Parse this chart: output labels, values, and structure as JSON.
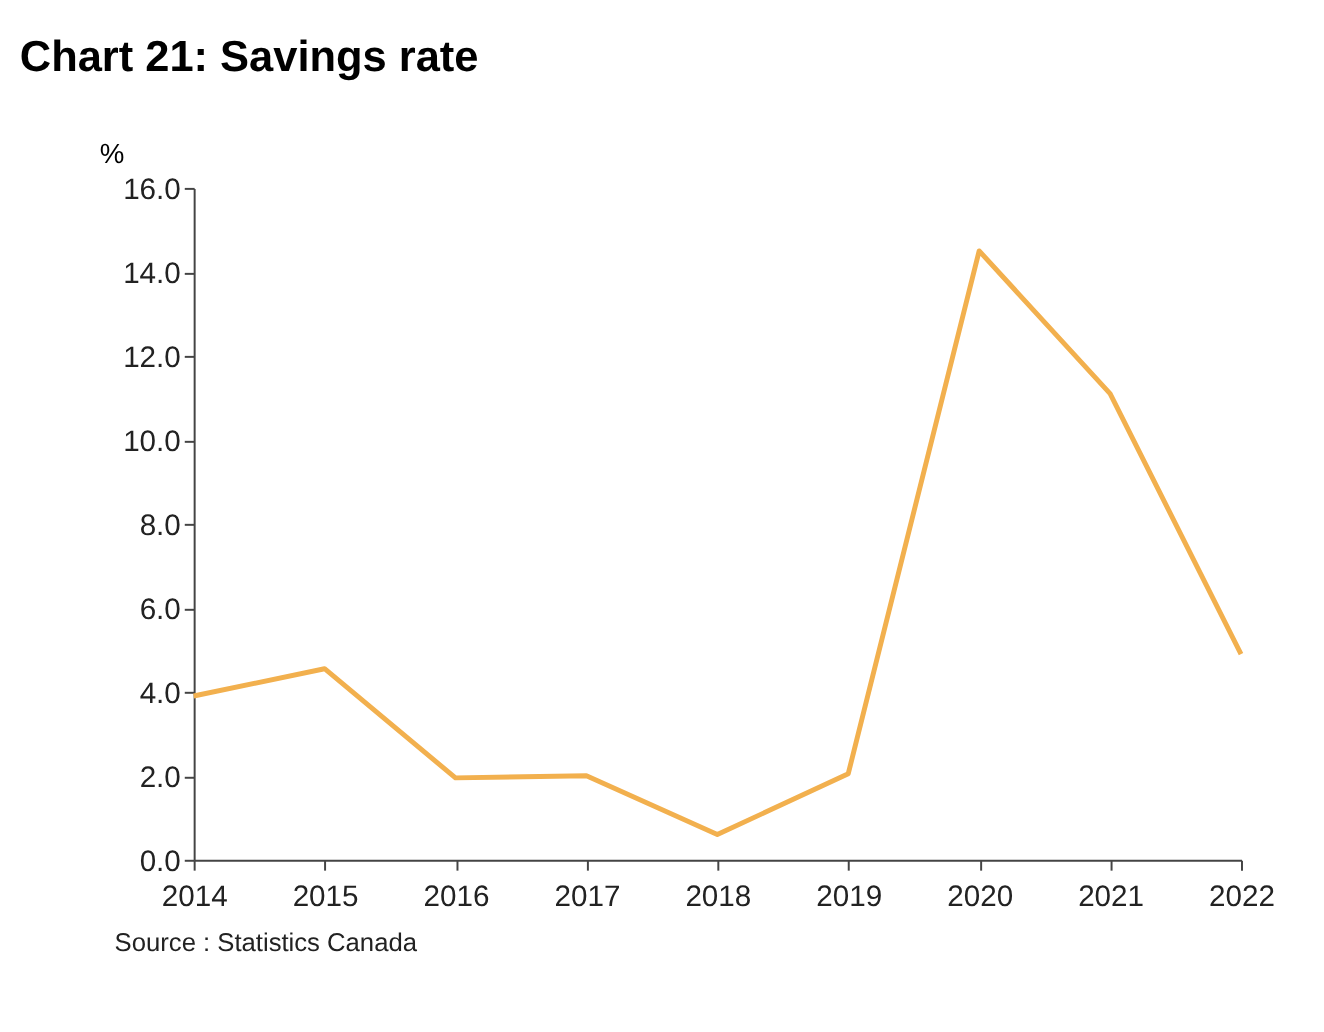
{
  "chart_data": {
    "type": "line",
    "title": "Chart 21: Savings rate",
    "ylabel": "%",
    "x": [
      2014,
      2015,
      2016,
      2017,
      2018,
      2019,
      2020,
      2021,
      2022
    ],
    "series": [
      {
        "color": "#f2b04e",
        "values": [
          3.9,
          4.55,
          1.95,
          2.0,
          0.6,
          2.05,
          14.5,
          11.1,
          4.9
        ]
      }
    ],
    "xlim": [
      2014,
      2022
    ],
    "xticks": [
      2014,
      2015,
      2016,
      2017,
      2018,
      2019,
      2020,
      2021,
      2022
    ],
    "ylim": [
      0,
      16
    ],
    "yticks": [
      {
        "value": 0,
        "label": "0.0"
      },
      {
        "value": 2,
        "label": "2.0"
      },
      {
        "value": 4,
        "label": "4.0"
      },
      {
        "value": 6,
        "label": "6.0"
      },
      {
        "value": 8,
        "label": "8.0"
      },
      {
        "value": 10,
        "label": "10.0"
      },
      {
        "value": 12,
        "label": "12.0"
      },
      {
        "value": 14,
        "label": "14.0"
      },
      {
        "value": 16,
        "label": "16.0"
      }
    ],
    "grid": false,
    "marker": "none",
    "line_style": "solid",
    "annotations": [
      "Source : Statistics Canada"
    ]
  }
}
